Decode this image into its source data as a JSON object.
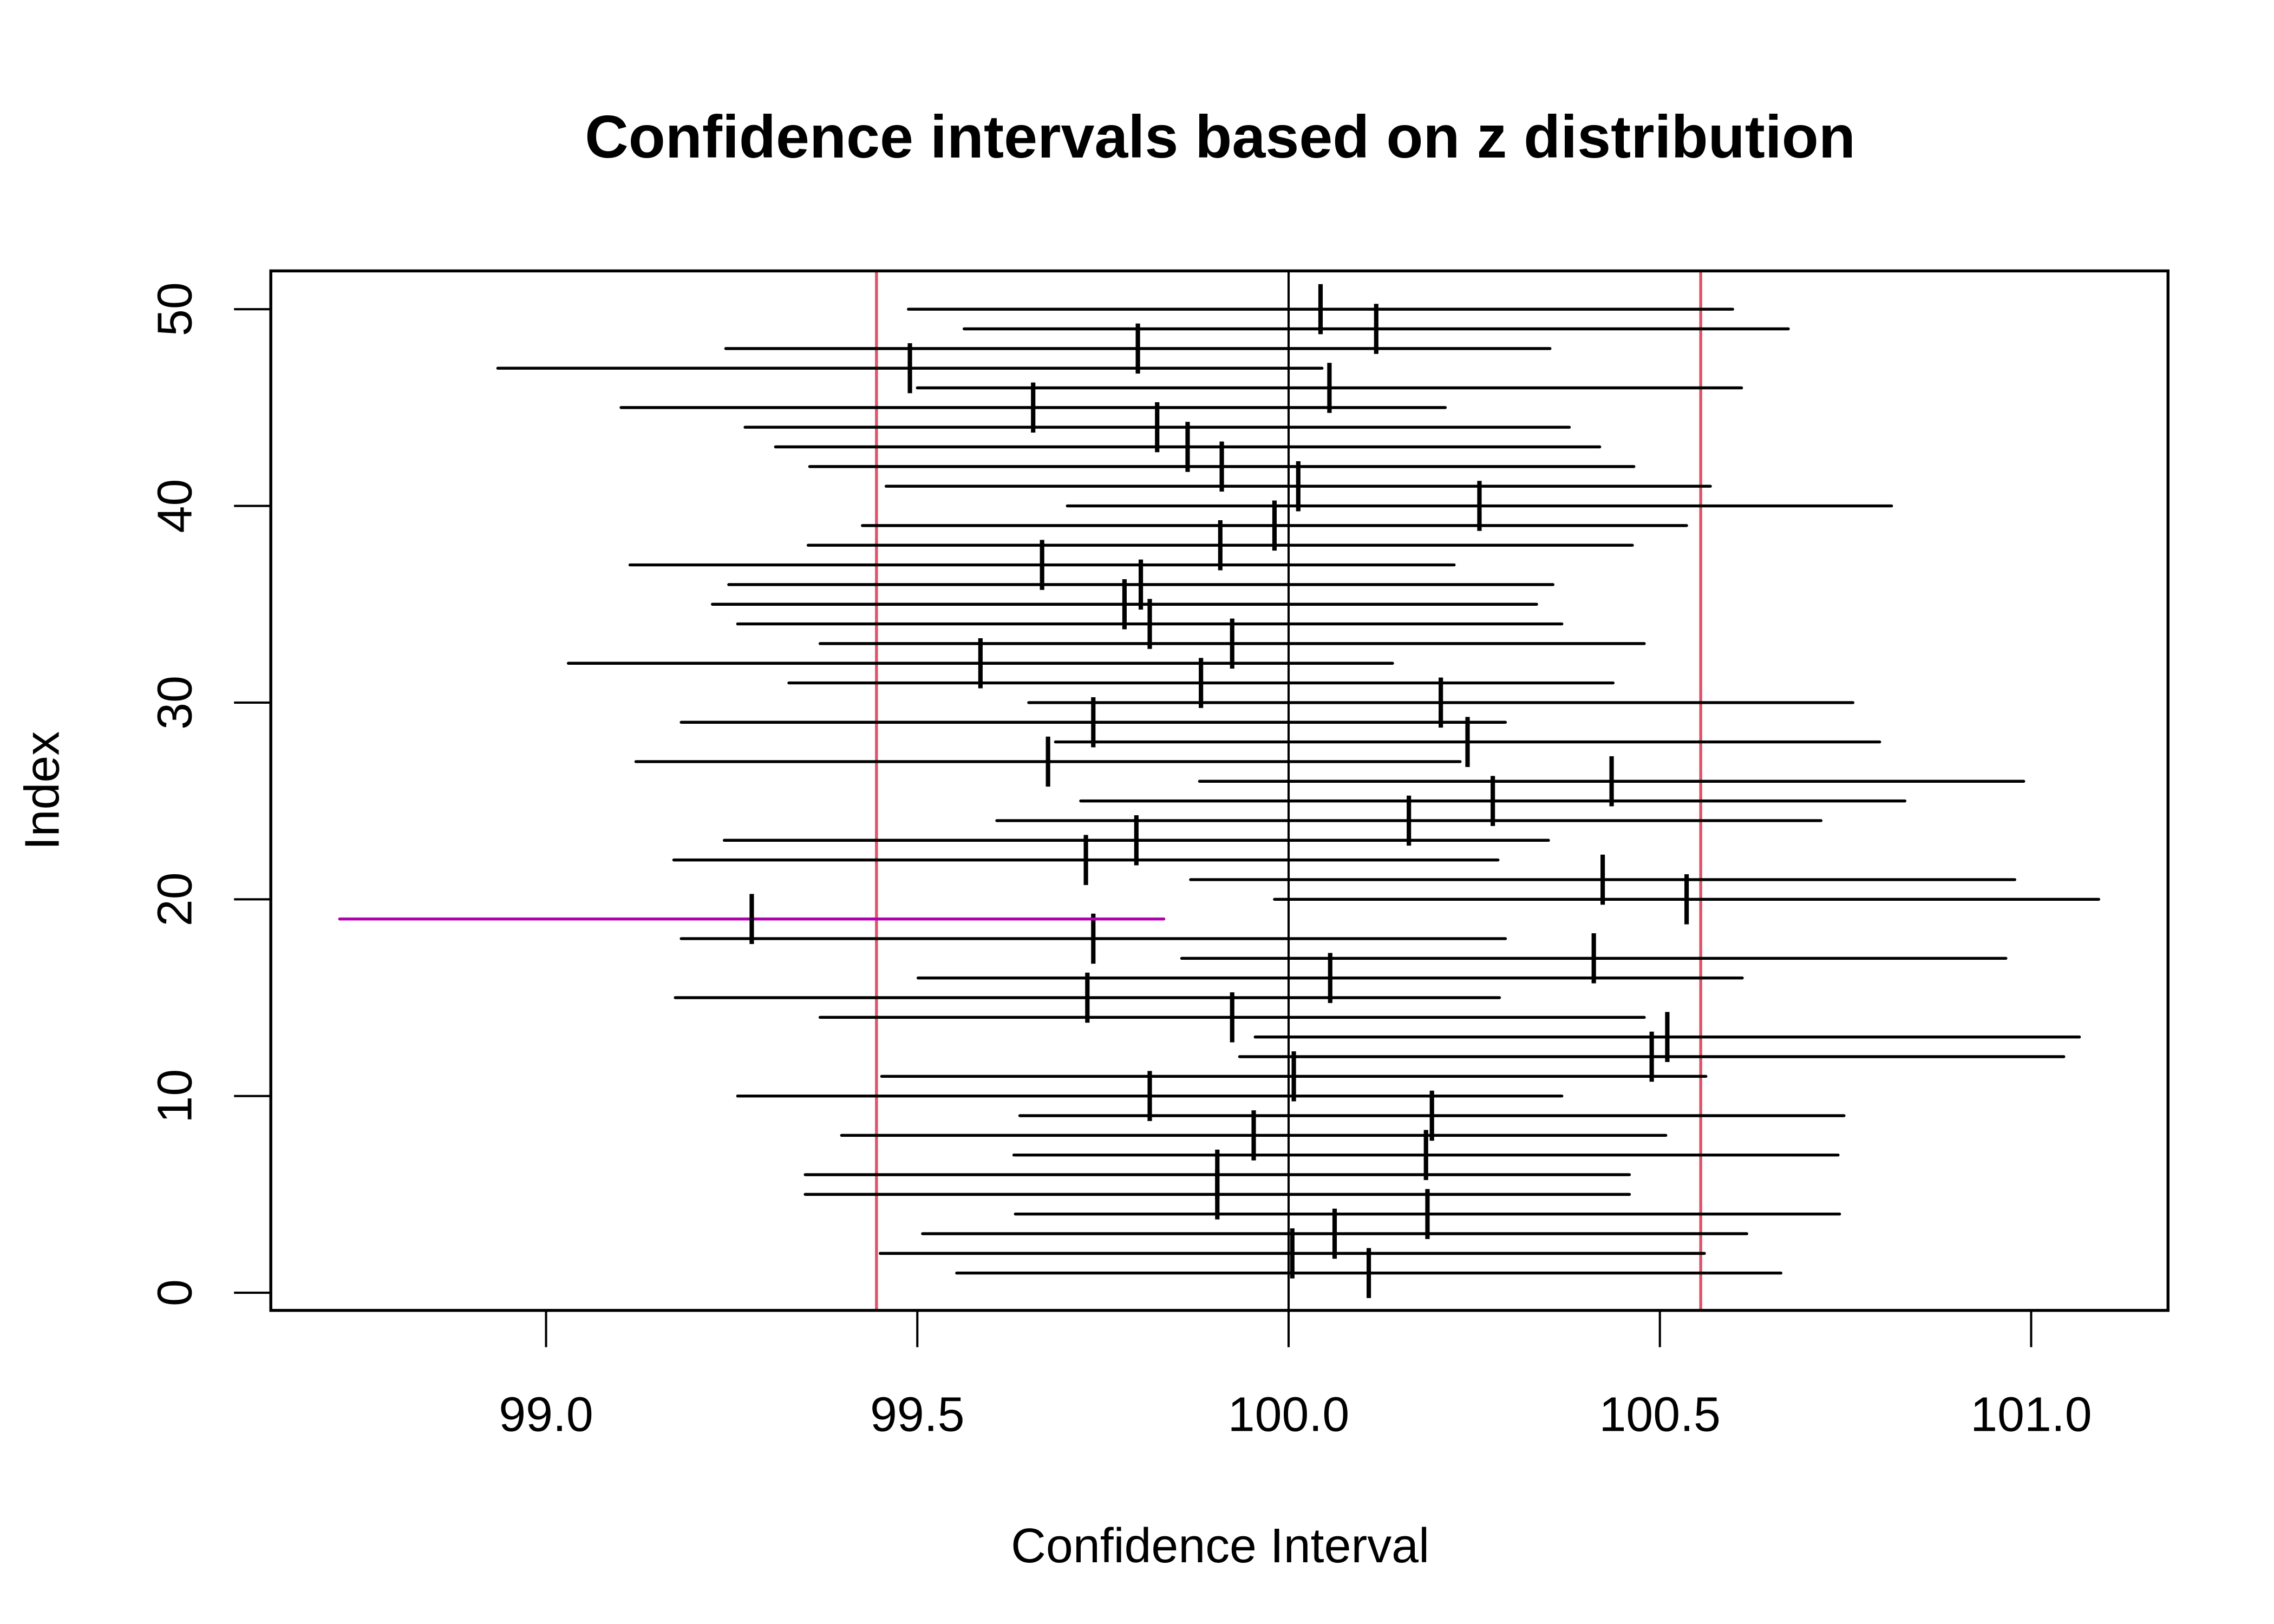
{
  "chart_data": {
    "type": "interval",
    "title": "Confidence intervals based on z distribution",
    "xlabel": "Confidence Interval",
    "ylabel": "Index",
    "xlim": [
      98.63,
      101.19
    ],
    "ylim": [
      -1,
      52
    ],
    "xticks": [
      "99.0",
      "99.5",
      "100.0",
      "100.5",
      "101.0"
    ],
    "xtick_values": [
      99.0,
      99.5,
      100.0,
      100.5,
      101.0
    ],
    "yticks": [
      "0",
      "10",
      "20",
      "30",
      "40",
      "50"
    ],
    "ytick_values": [
      0,
      10,
      20,
      30,
      40,
      50
    ],
    "grid": false,
    "legend": "none",
    "true_mean": 100.0,
    "margin_of_error": 0.555,
    "reference_lines": [
      {
        "name": "lower-bound",
        "x": 99.445,
        "color": "#DF536B"
      },
      {
        "name": "true-mean",
        "x": 100.0,
        "color": "#000000"
      },
      {
        "name": "upper-bound",
        "x": 100.555,
        "color": "#DF536B"
      }
    ],
    "colors": {
      "covering": "#000000",
      "not_covering": "#B000B0",
      "reference": "#DF536B"
    },
    "intervals": [
      {
        "index": 1,
        "mean": 100.108
      },
      {
        "index": 2,
        "mean": 100.005
      },
      {
        "index": 3,
        "mean": 100.062
      },
      {
        "index": 4,
        "mean": 100.187
      },
      {
        "index": 5,
        "mean": 99.904
      },
      {
        "index": 6,
        "mean": 99.904
      },
      {
        "index": 7,
        "mean": 100.185
      },
      {
        "index": 8,
        "mean": 99.953
      },
      {
        "index": 9,
        "mean": 100.193
      },
      {
        "index": 10,
        "mean": 99.813
      },
      {
        "index": 11,
        "mean": 100.007
      },
      {
        "index": 12,
        "mean": 100.489
      },
      {
        "index": 13,
        "mean": 100.51
      },
      {
        "index": 14,
        "mean": 99.924
      },
      {
        "index": 15,
        "mean": 99.729
      },
      {
        "index": 16,
        "mean": 100.056
      },
      {
        "index": 17,
        "mean": 100.411
      },
      {
        "index": 18,
        "mean": 99.737
      },
      {
        "index": 19,
        "mean": 99.277
      },
      {
        "index": 20,
        "mean": 100.536
      },
      {
        "index": 21,
        "mean": 100.423
      },
      {
        "index": 22,
        "mean": 99.727
      },
      {
        "index": 23,
        "mean": 99.795
      },
      {
        "index": 24,
        "mean": 100.162
      },
      {
        "index": 25,
        "mean": 100.275
      },
      {
        "index": 26,
        "mean": 100.435
      },
      {
        "index": 27,
        "mean": 99.676
      },
      {
        "index": 28,
        "mean": 100.241
      },
      {
        "index": 29,
        "mean": 99.737
      },
      {
        "index": 30,
        "mean": 100.205
      },
      {
        "index": 31,
        "mean": 99.882
      },
      {
        "index": 32,
        "mean": 99.585
      },
      {
        "index": 33,
        "mean": 99.924
      },
      {
        "index": 34,
        "mean": 99.813
      },
      {
        "index": 35,
        "mean": 99.779
      },
      {
        "index": 36,
        "mean": 99.801
      },
      {
        "index": 37,
        "mean": 99.668
      },
      {
        "index": 38,
        "mean": 99.908
      },
      {
        "index": 39,
        "mean": 99.981
      },
      {
        "index": 40,
        "mean": 100.257
      },
      {
        "index": 41,
        "mean": 100.013
      },
      {
        "index": 42,
        "mean": 99.91
      },
      {
        "index": 43,
        "mean": 99.864
      },
      {
        "index": 44,
        "mean": 99.823
      },
      {
        "index": 45,
        "mean": 99.656
      },
      {
        "index": 46,
        "mean": 100.055
      },
      {
        "index": 47,
        "mean": 99.49
      },
      {
        "index": 48,
        "mean": 99.797
      },
      {
        "index": 49,
        "mean": 100.118
      },
      {
        "index": 50,
        "mean": 100.043
      }
    ]
  }
}
